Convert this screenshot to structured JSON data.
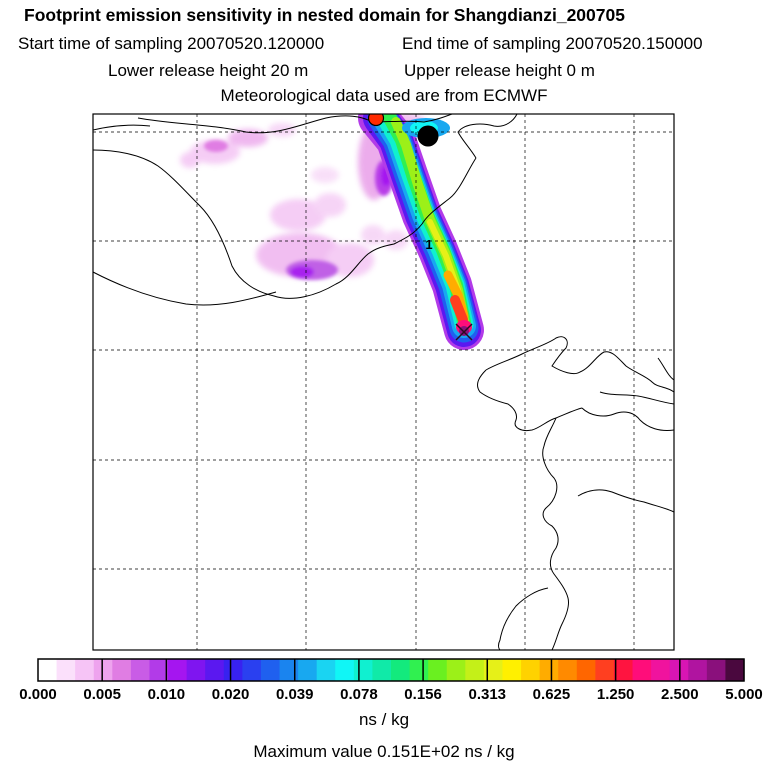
{
  "header": {
    "title": "Footprint emission sensitivity in nested domain for Shangdianzi_200705",
    "start_sampling": "Start time of sampling 20070520.120000",
    "end_sampling": "End time of sampling 20070520.150000",
    "lower_release": "Lower release height   20 m",
    "upper_release": "Upper release height    0 m",
    "met_source": "Meteorological data used are from ECMWF"
  },
  "map": {
    "contour_label": "1",
    "markers": [
      {
        "name": "release-site-marker",
        "color": "#ff2a00"
      },
      {
        "name": "receptor-site-marker",
        "color": "#000000"
      }
    ]
  },
  "legend": {
    "labels": [
      "0.000",
      "0.005",
      "0.010",
      "0.020",
      "0.039",
      "0.078",
      "0.156",
      "0.313",
      "0.625",
      "1.250",
      "2.500",
      "5.000"
    ],
    "colors": [
      "#ffffff",
      "#fbe0fb",
      "#f6c4f6",
      "#eea3ee",
      "#e07de3",
      "#c95ce6",
      "#b23be8",
      "#a515f0",
      "#7f15f0",
      "#5b18f0",
      "#3822f0",
      "#2a40f0",
      "#1f60ef",
      "#1a84ef",
      "#18a8f0",
      "#1ad4f2",
      "#10f6f6",
      "#10f0d0",
      "#10eaa8",
      "#13ea7d",
      "#30f050",
      "#6af020",
      "#9cf018",
      "#c4f018",
      "#e6f018",
      "#fff000",
      "#ffd200",
      "#ffac00",
      "#ff8a00",
      "#ff6600",
      "#ff3f20",
      "#ff1440",
      "#ff0d7a",
      "#f0139e",
      "#d815b4",
      "#b014a0",
      "#8a107c",
      "#4a083e"
    ],
    "units": "ns / kg",
    "max_value": "Maximum value  0.151E+02 ns / kg"
  }
}
